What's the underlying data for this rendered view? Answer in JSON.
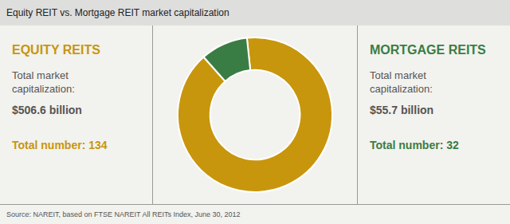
{
  "chart_data": {
    "type": "doughnut",
    "title": "Equity REIT vs. Mortgage REIT market capitalization",
    "source": "Source: NAREIT, based on FTSE NAREIT All REITs Index, June 30, 2012",
    "categories": [
      "EQUITY REITS",
      "MORTGAGE REITS"
    ],
    "values": [
      506.6,
      55.7
    ],
    "value_labels": [
      "$506.6 billion",
      "$55.7 billion"
    ],
    "colors": [
      "#C8960C",
      "#3A7D44"
    ],
    "annotations": [
      [
        "Total market",
        "capitalization:",
        "Total number: 134"
      ],
      [
        "Total market",
        "capitalization:",
        "Total number: 32"
      ]
    ],
    "legend": false
  }
}
